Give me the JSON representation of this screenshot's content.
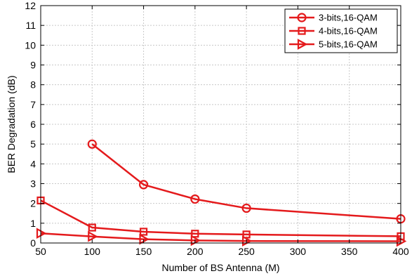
{
  "chart_data": {
    "type": "line",
    "xlabel": "Number of BS Antenna (M)",
    "ylabel": "BER Degradation (dB)",
    "xlim": [
      50,
      400
    ],
    "ylim": [
      0,
      12
    ],
    "xticks": [
      50,
      100,
      150,
      200,
      250,
      300,
      350,
      400
    ],
    "yticks": [
      0,
      1,
      2,
      3,
      4,
      5,
      6,
      7,
      8,
      9,
      10,
      11,
      12
    ],
    "grid": true,
    "legend_position": "top-right",
    "series": [
      {
        "name": "3-bits,16-QAM",
        "marker": "circle",
        "color": "#e41a1c",
        "x": [
          100,
          150,
          200,
          250,
          400
        ],
        "y": [
          5.0,
          2.95,
          2.22,
          1.76,
          1.22
        ]
      },
      {
        "name": "4-bits,16-QAM",
        "marker": "square",
        "color": "#e41a1c",
        "x": [
          50,
          100,
          150,
          200,
          250,
          400
        ],
        "y": [
          2.15,
          0.78,
          0.57,
          0.47,
          0.43,
          0.34
        ]
      },
      {
        "name": "5-bits,16-QAM",
        "marker": "triangle-right",
        "color": "#e41a1c",
        "x": [
          50,
          100,
          150,
          200,
          250,
          400
        ],
        "y": [
          0.49,
          0.33,
          0.19,
          0.13,
          0.1,
          0.09
        ]
      }
    ]
  }
}
